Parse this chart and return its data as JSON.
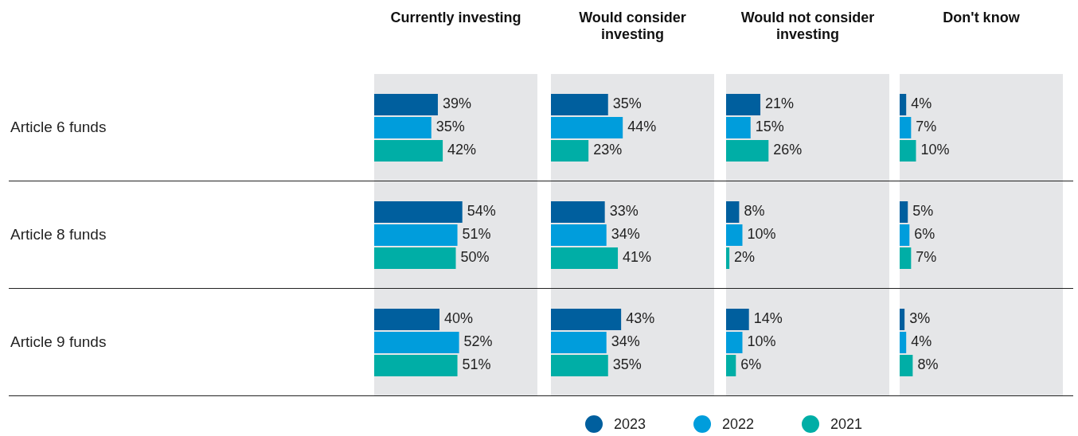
{
  "chart_data": [
    {
      "type": "bar",
      "orientation": "horizontal",
      "title": "Currently investing",
      "categories": [
        "Article 6 funds",
        "Article 8 funds",
        "Article 9 funds"
      ],
      "xlim": [
        0,
        100
      ],
      "tick_labels": "y",
      "legend": "bottom",
      "series": [
        {
          "name": "2023",
          "color": "#005f9e",
          "values": [
            39,
            54,
            40
          ],
          "value_labels": [
            "39%",
            "54%",
            "40%"
          ]
        },
        {
          "name": "2022",
          "color": "#009ddc",
          "values": [
            35,
            51,
            52
          ],
          "value_labels": [
            "35%",
            "51%",
            "52%"
          ]
        },
        {
          "name": "2021",
          "color": "#00aea6",
          "values": [
            42,
            50,
            51
          ],
          "value_labels": [
            "42%",
            "50%",
            "51%"
          ]
        }
      ]
    },
    {
      "type": "bar",
      "orientation": "horizontal",
      "title": "Would consider investing",
      "categories": [
        null,
        null,
        null
      ],
      "xlim": [
        0,
        100
      ],
      "tick_labels": false,
      "series": [
        {
          "name": "2023",
          "color": "#005f9e",
          "values": [
            35,
            33,
            43
          ],
          "value_labels": [
            "35%",
            "33%",
            "43%"
          ]
        },
        {
          "name": "2022",
          "color": "#009ddc",
          "values": [
            44,
            34,
            34
          ],
          "value_labels": [
            "44%",
            "34%",
            "34%"
          ]
        },
        {
          "name": "2021",
          "color": "#00aea6",
          "values": [
            23,
            41,
            35
          ],
          "value_labels": [
            "23%",
            "41%",
            "35%"
          ]
        }
      ]
    },
    {
      "type": "bar",
      "orientation": "horizontal",
      "title": "Would not consider investing",
      "categories": [
        null,
        null,
        null
      ],
      "xlim": [
        0,
        100
      ],
      "tick_labels": false,
      "series": [
        {
          "name": "2023",
          "color": "#005f9e",
          "values": [
            21,
            8,
            14
          ],
          "value_labels": [
            "21%",
            "8%",
            "14%"
          ]
        },
        {
          "name": "2022",
          "color": "#009ddc",
          "values": [
            15,
            10,
            10
          ],
          "value_labels": [
            "15%",
            "10%",
            "10%"
          ]
        },
        {
          "name": "2021",
          "color": "#00aea6",
          "values": [
            26,
            2,
            6
          ],
          "value_labels": [
            "26%",
            "2%",
            "6%"
          ]
        }
      ]
    },
    {
      "type": "bar",
      "orientation": "horizontal",
      "title": "Don't know",
      "categories": [
        null,
        null,
        null
      ],
      "xlim": [
        0,
        100
      ],
      "tick_labels": false,
      "series": [
        {
          "name": "2023",
          "color": "#005f9e",
          "values": [
            4,
            5,
            3
          ],
          "value_labels": [
            "4%",
            "5%",
            "3%"
          ]
        },
        {
          "name": "2022",
          "color": "#009ddc",
          "values": [
            7,
            6,
            4
          ],
          "value_labels": [
            "7%",
            "6%",
            "4%"
          ]
        },
        {
          "name": "2021",
          "color": "#00aea6",
          "values": [
            10,
            7,
            8
          ],
          "value_labels": [
            "10%",
            "7%",
            "8%"
          ]
        }
      ]
    }
  ]
}
